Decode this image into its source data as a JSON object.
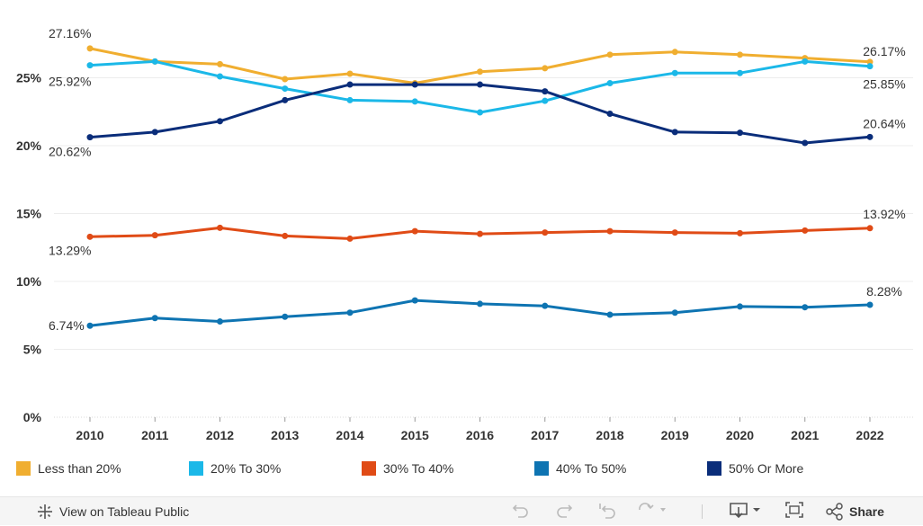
{
  "chart_data": {
    "type": "line",
    "categories": [
      "2010",
      "2011",
      "2012",
      "2013",
      "2014",
      "2015",
      "2016",
      "2017",
      "2018",
      "2019",
      "2020",
      "2021",
      "2022"
    ],
    "y_ticks": [
      "0%",
      "5%",
      "10%",
      "15%",
      "20%",
      "25%"
    ],
    "ylim": [
      0,
      29
    ],
    "series": [
      {
        "name": "Less than 20%",
        "color": "#f0ae30",
        "values": [
          27.16,
          26.2,
          26.0,
          24.9,
          25.3,
          24.6,
          25.45,
          25.7,
          26.7,
          26.9,
          26.7,
          26.45,
          26.17
        ],
        "first_label": "27.16%",
        "last_label": "26.17%"
      },
      {
        "name": "20% To 30%",
        "color": "#1bb8e8",
        "values": [
          25.92,
          26.2,
          25.1,
          24.2,
          23.35,
          23.25,
          22.45,
          23.3,
          24.6,
          25.35,
          25.35,
          26.2,
          25.85
        ],
        "first_label": "25.92%",
        "last_label": "25.85%"
      },
      {
        "name": "30% To 40%",
        "color": "#e04b16",
        "values": [
          13.29,
          13.4,
          13.95,
          13.35,
          13.15,
          13.7,
          13.5,
          13.6,
          13.7,
          13.6,
          13.55,
          13.75,
          13.92
        ],
        "first_label": "13.29%",
        "last_label": "13.92%"
      },
      {
        "name": "40% To 50%",
        "color": "#0e74b2",
        "values": [
          6.74,
          7.3,
          7.05,
          7.4,
          7.7,
          8.6,
          8.35,
          8.2,
          7.55,
          7.7,
          8.15,
          8.1,
          8.28
        ],
        "first_label": "6.74%",
        "last_label": "8.28%"
      },
      {
        "name": "50% Or More",
        "color": "#0a2d7a",
        "values": [
          20.62,
          21.0,
          21.8,
          23.35,
          24.5,
          24.5,
          24.5,
          24.0,
          22.35,
          21.0,
          20.95,
          20.2,
          20.64
        ],
        "first_label": "20.62%",
        "last_label": "20.64%"
      }
    ]
  },
  "toolbar": {
    "view_label": "View on Tableau Public",
    "share_label": "Share"
  },
  "icons": {
    "tableau": "tableau-logo-icon",
    "undo": "undo-icon",
    "redo": "redo-icon",
    "revert": "revert-icon",
    "refresh": "refresh-icon",
    "download": "download-icon",
    "fullscreen": "fullscreen-icon",
    "share": "share-icon"
  }
}
